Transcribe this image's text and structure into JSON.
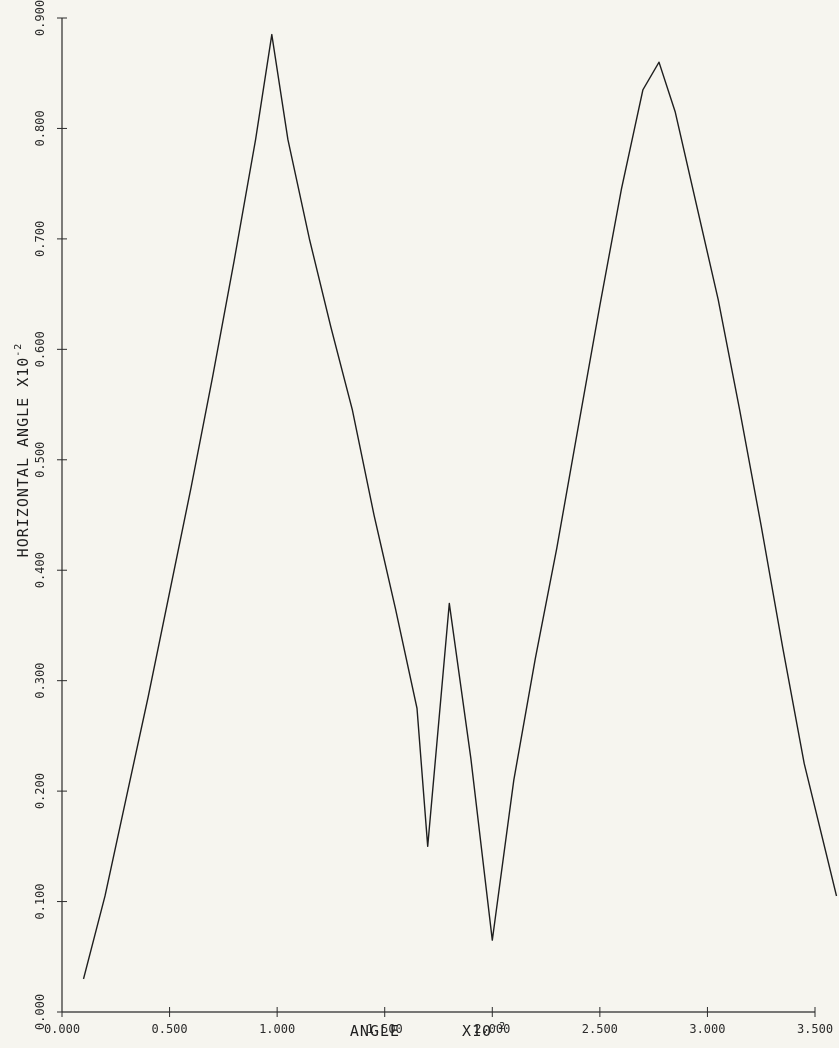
{
  "chart_data": {
    "type": "line",
    "xlabel": "ANGLE",
    "xlabel_scale": "X10",
    "xlabel_exp": "-2",
    "ylabel": "HORIZONTAL ANGLE X10",
    "ylabel_exp": "-2",
    "xlim": [
      0.0,
      3.5
    ],
    "ylim": [
      0.0,
      0.9
    ],
    "grid": false,
    "x_ticks": [
      0.0,
      0.5,
      1.0,
      1.5,
      2.0,
      2.5,
      3.0,
      3.5
    ],
    "x_tick_labels": [
      "0.000",
      "0.500",
      "1.000",
      "1.500",
      "2.000",
      "2.500",
      "3.000",
      "3.500"
    ],
    "y_ticks": [
      0.0,
      0.1,
      0.2,
      0.3,
      0.4,
      0.5,
      0.6,
      0.7,
      0.8,
      0.9
    ],
    "y_tick_labels": [
      "0.000",
      "0.100",
      "0.200",
      "0.300",
      "0.400",
      "0.500",
      "0.600",
      "0.700",
      "0.800",
      "0.900"
    ],
    "series": [
      {
        "color": "#1e1e1e",
        "x": [
          0.1,
          0.2,
          0.3,
          0.4,
          0.5,
          0.6,
          0.7,
          0.8,
          0.9,
          0.975,
          1.05,
          1.15,
          1.25,
          1.35,
          1.45,
          1.55,
          1.65,
          1.7,
          1.8,
          1.9,
          2.0,
          2.1,
          2.2,
          2.3,
          2.4,
          2.5,
          2.6,
          2.7,
          2.775,
          2.85,
          2.95,
          3.05,
          3.15,
          3.25,
          3.35,
          3.45,
          3.55,
          3.6
        ],
        "y": [
          0.03,
          0.105,
          0.195,
          0.285,
          0.38,
          0.475,
          0.575,
          0.68,
          0.79,
          0.885,
          0.79,
          0.7,
          0.62,
          0.545,
          0.45,
          0.365,
          0.275,
          0.15,
          0.37,
          0.23,
          0.065,
          0.21,
          0.32,
          0.42,
          0.53,
          0.64,
          0.745,
          0.835,
          0.86,
          0.815,
          0.73,
          0.645,
          0.545,
          0.44,
          0.33,
          0.225,
          0.145,
          0.105
        ]
      }
    ]
  }
}
